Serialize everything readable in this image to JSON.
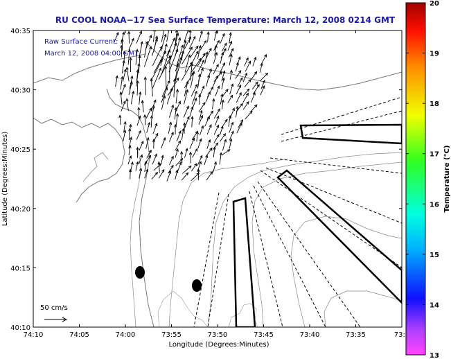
{
  "chart_data": {
    "type": "vector-field",
    "title": "RU COOL  NOAA−17  Sea Surface Temperature:  March 12, 2008 0214 GMT",
    "annotation_line1": "Raw Surface Current:",
    "annotation_line2": "March 12, 2008 04:00 GMT",
    "xlabel": "Longitude (Degrees:Minutes)",
    "ylabel": "Latitude (Degrees:Minutes)",
    "x_ticks": [
      "74:10",
      "74:05",
      "74:00",
      "73:55",
      "73:50",
      "73:45",
      "73:40",
      "73:35",
      "73:3"
    ],
    "y_ticks": [
      "40:35",
      "40:30",
      "40:25",
      "40:20",
      "40:15",
      "40:10"
    ],
    "x_range_min": [
      -70,
      -30
    ],
    "y_range_min": [
      10,
      35
    ],
    "scale_label": "50 cm/s",
    "colorbar": {
      "label": "Temperature (°C)",
      "min": 13,
      "max": 20,
      "ticks": [
        "20",
        "19",
        "18",
        "17",
        "16",
        "15",
        "14",
        "13"
      ]
    },
    "current_field": {
      "direction": "northeast to north-northeast, strongest near Sandy Hook / harbor entrance",
      "lat_range_min": [
        22,
        34
      ],
      "lon_range_min": [
        -62,
        -45
      ]
    }
  },
  "colors": {
    "title": "#1a1aa8",
    "coast": "#777777",
    "arrows": "#000000"
  }
}
